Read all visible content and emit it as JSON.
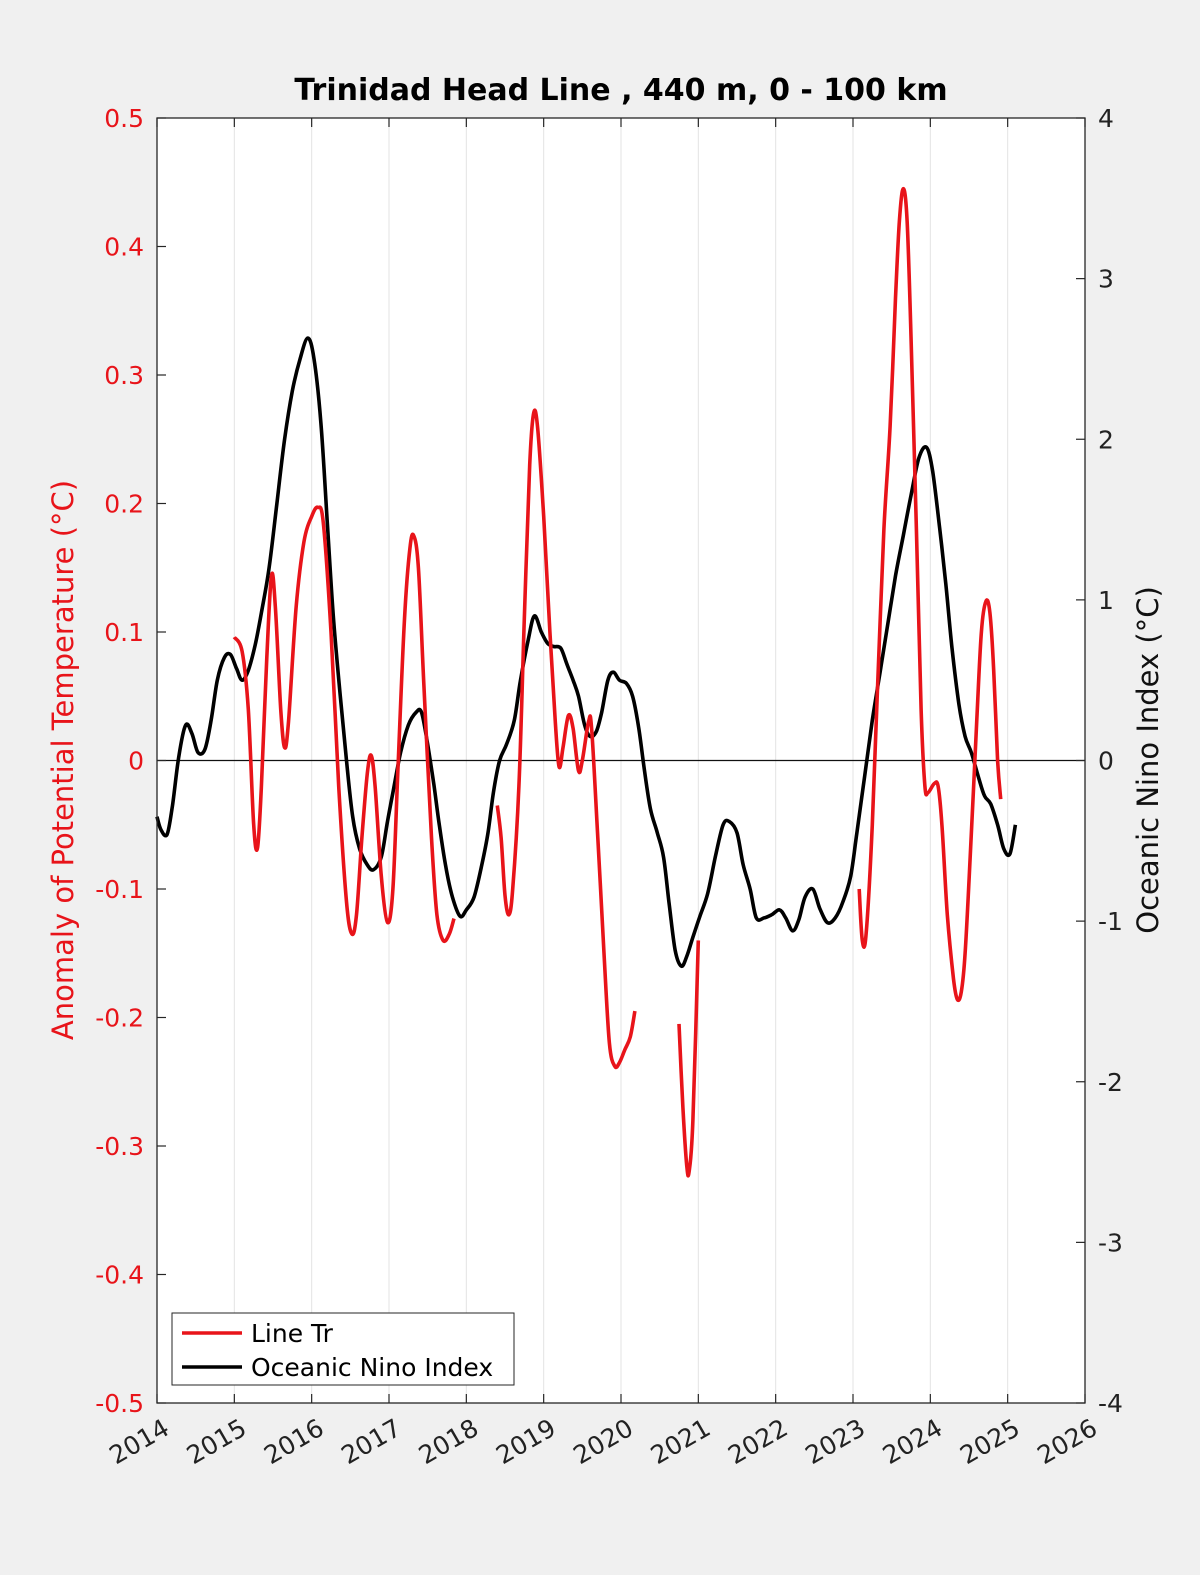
{
  "chart_data": {
    "type": "line",
    "title": "Trinidad Head Line , 440 m, 0 - 100 km",
    "xlabel": "",
    "ylabel_left": "Anomaly of Potential Temperature (°C)",
    "ylabel_right": "Oceanic Nino Index (°C)",
    "xlim": [
      2014,
      2026
    ],
    "ylim_left": [
      -0.5,
      0.5
    ],
    "ylim_right": [
      -4,
      4
    ],
    "x_ticks": [
      "2014",
      "2015",
      "2016",
      "2017",
      "2018",
      "2019",
      "2020",
      "2021",
      "2022",
      "2023",
      "2024",
      "2025",
      "2026"
    ],
    "y_ticks_left": [
      "0.5",
      "0.4",
      "0.3",
      "0.2",
      "0.1",
      "0",
      "-0.1",
      "-0.2",
      "-0.3",
      "-0.4",
      "-0.5"
    ],
    "y_ticks_right": [
      "4",
      "3",
      "2",
      "1",
      "0",
      "-1",
      "-2",
      "-3",
      "-4"
    ],
    "x_grid": true,
    "y_grid": false,
    "zero_line": true,
    "legend_position": "bottom-left",
    "colors": {
      "line_tr": "#e8141a",
      "oni": "#000000",
      "right_axis": "#222222"
    },
    "series": [
      {
        "name": "Line Tr",
        "axis": "left",
        "color": "#e8141a",
        "segments": [
          [
            [
              2015.0,
              0.096
            ],
            [
              2015.1,
              0.085
            ],
            [
              2015.18,
              0.04
            ],
            [
              2015.25,
              -0.05
            ],
            [
              2015.3,
              -0.068
            ],
            [
              2015.35,
              -0.02
            ],
            [
              2015.42,
              0.08
            ],
            [
              2015.48,
              0.144
            ],
            [
              2015.53,
              0.12
            ],
            [
              2015.6,
              0.04
            ],
            [
              2015.65,
              0.01
            ],
            [
              2015.7,
              0.03
            ],
            [
              2015.8,
              0.12
            ],
            [
              2015.9,
              0.17
            ],
            [
              2016.0,
              0.19
            ],
            [
              2016.08,
              0.197
            ],
            [
              2016.15,
              0.185
            ],
            [
              2016.25,
              0.1
            ],
            [
              2016.35,
              -0.02
            ],
            [
              2016.45,
              -0.11
            ],
            [
              2016.52,
              -0.135
            ],
            [
              2016.58,
              -0.12
            ],
            [
              2016.65,
              -0.06
            ],
            [
              2016.72,
              -0.01
            ],
            [
              2016.77,
              0.004
            ],
            [
              2016.82,
              -0.02
            ],
            [
              2016.9,
              -0.09
            ],
            [
              2016.98,
              -0.126
            ],
            [
              2017.05,
              -0.1
            ],
            [
              2017.12,
              0.0
            ],
            [
              2017.2,
              0.11
            ],
            [
              2017.27,
              0.165
            ],
            [
              2017.32,
              0.175
            ],
            [
              2017.38,
              0.15
            ],
            [
              2017.45,
              0.06
            ],
            [
              2017.55,
              -0.06
            ],
            [
              2017.62,
              -0.12
            ],
            [
              2017.7,
              -0.14
            ],
            [
              2017.78,
              -0.135
            ],
            [
              2017.84,
              -0.123
            ]
          ],
          [
            [
              2018.4,
              -0.035
            ],
            [
              2018.45,
              -0.06
            ],
            [
              2018.5,
              -0.105
            ],
            [
              2018.55,
              -0.12
            ],
            [
              2018.6,
              -0.1
            ],
            [
              2018.68,
              -0.02
            ],
            [
              2018.75,
              0.11
            ],
            [
              2018.82,
              0.23
            ],
            [
              2018.87,
              0.27
            ],
            [
              2018.92,
              0.26
            ],
            [
              2019.0,
              0.19
            ],
            [
              2019.08,
              0.1
            ],
            [
              2019.15,
              0.03
            ],
            [
              2019.2,
              -0.005
            ],
            [
              2019.25,
              0.01
            ],
            [
              2019.32,
              0.035
            ],
            [
              2019.38,
              0.025
            ],
            [
              2019.45,
              -0.008
            ],
            [
              2019.5,
              0.0
            ],
            [
              2019.58,
              0.03
            ],
            [
              2019.62,
              0.025
            ],
            [
              2019.7,
              -0.06
            ],
            [
              2019.78,
              -0.15
            ],
            [
              2019.85,
              -0.22
            ],
            [
              2019.92,
              -0.238
            ],
            [
              2019.98,
              -0.235
            ],
            [
              2020.05,
              -0.225
            ],
            [
              2020.12,
              -0.215
            ],
            [
              2020.18,
              -0.195
            ]
          ],
          [
            [
              2020.75,
              -0.205
            ],
            [
              2020.8,
              -0.27
            ],
            [
              2020.85,
              -0.315
            ],
            [
              2020.88,
              -0.32
            ],
            [
              2020.93,
              -0.28
            ],
            [
              2021.0,
              -0.14
            ]
          ],
          [
            [
              2023.08,
              -0.1
            ],
            [
              2023.12,
              -0.14
            ],
            [
              2023.17,
              -0.135
            ],
            [
              2023.25,
              -0.05
            ],
            [
              2023.32,
              0.06
            ],
            [
              2023.4,
              0.18
            ],
            [
              2023.48,
              0.26
            ],
            [
              2023.55,
              0.36
            ],
            [
              2023.6,
              0.42
            ],
            [
              2023.65,
              0.445
            ],
            [
              2023.7,
              0.42
            ],
            [
              2023.75,
              0.33
            ],
            [
              2023.82,
              0.18
            ],
            [
              2023.88,
              0.04
            ],
            [
              2023.93,
              -0.02
            ],
            [
              2023.97,
              -0.025
            ],
            [
              2024.05,
              -0.018
            ],
            [
              2024.1,
              -0.02
            ],
            [
              2024.15,
              -0.05
            ],
            [
              2024.22,
              -0.12
            ],
            [
              2024.3,
              -0.17
            ],
            [
              2024.35,
              -0.186
            ],
            [
              2024.4,
              -0.18
            ],
            [
              2024.45,
              -0.15
            ],
            [
              2024.52,
              -0.07
            ],
            [
              2024.6,
              0.03
            ],
            [
              2024.66,
              0.1
            ],
            [
              2024.72,
              0.124
            ],
            [
              2024.77,
              0.115
            ],
            [
              2024.82,
              0.07
            ],
            [
              2024.87,
              0.0
            ],
            [
              2024.91,
              -0.03
            ]
          ]
        ]
      },
      {
        "name": "Oceanic Nino Index",
        "axis": "right",
        "color": "#000000",
        "segments": [
          [
            [
              2014.0,
              -0.35
            ],
            [
              2014.05,
              -0.43
            ],
            [
              2014.13,
              -0.46
            ],
            [
              2014.2,
              -0.28
            ],
            [
              2014.28,
              0.02
            ],
            [
              2014.37,
              0.22
            ],
            [
              2014.45,
              0.17
            ],
            [
              2014.53,
              0.05
            ],
            [
              2014.62,
              0.07
            ],
            [
              2014.7,
              0.25
            ],
            [
              2014.78,
              0.5
            ],
            [
              2014.87,
              0.64
            ],
            [
              2014.95,
              0.66
            ],
            [
              2015.03,
              0.57
            ],
            [
              2015.1,
              0.5
            ],
            [
              2015.18,
              0.56
            ],
            [
              2015.27,
              0.72
            ],
            [
              2015.35,
              0.92
            ],
            [
              2015.45,
              1.2
            ],
            [
              2015.55,
              1.6
            ],
            [
              2015.65,
              2.0
            ],
            [
              2015.75,
              2.3
            ],
            [
              2015.85,
              2.5
            ],
            [
              2015.95,
              2.63
            ],
            [
              2016.03,
              2.5
            ],
            [
              2016.12,
              2.1
            ],
            [
              2016.2,
              1.5
            ],
            [
              2016.28,
              0.9
            ],
            [
              2016.37,
              0.4
            ],
            [
              2016.45,
              0.0
            ],
            [
              2016.53,
              -0.35
            ],
            [
              2016.62,
              -0.55
            ],
            [
              2016.72,
              -0.65
            ],
            [
              2016.8,
              -0.68
            ],
            [
              2016.9,
              -0.6
            ],
            [
              2016.98,
              -0.38
            ],
            [
              2017.05,
              -0.2
            ],
            [
              2017.15,
              0.05
            ],
            [
              2017.25,
              0.22
            ],
            [
              2017.35,
              0.3
            ],
            [
              2017.42,
              0.3
            ],
            [
              2017.5,
              0.1
            ],
            [
              2017.58,
              -0.15
            ],
            [
              2017.65,
              -0.4
            ],
            [
              2017.73,
              -0.65
            ],
            [
              2017.82,
              -0.85
            ],
            [
              2017.92,
              -0.97
            ],
            [
              2018.0,
              -0.93
            ],
            [
              2018.1,
              -0.85
            ],
            [
              2018.2,
              -0.65
            ],
            [
              2018.28,
              -0.45
            ],
            [
              2018.35,
              -0.2
            ],
            [
              2018.43,
              0.0
            ],
            [
              2018.52,
              0.1
            ],
            [
              2018.62,
              0.25
            ],
            [
              2018.7,
              0.5
            ],
            [
              2018.8,
              0.75
            ],
            [
              2018.88,
              0.9
            ],
            [
              2018.97,
              0.8
            ],
            [
              2019.05,
              0.73
            ],
            [
              2019.13,
              0.71
            ],
            [
              2019.22,
              0.7
            ],
            [
              2019.3,
              0.6
            ],
            [
              2019.38,
              0.5
            ],
            [
              2019.45,
              0.4
            ],
            [
              2019.53,
              0.22
            ],
            [
              2019.6,
              0.15
            ],
            [
              2019.68,
              0.18
            ],
            [
              2019.75,
              0.3
            ],
            [
              2019.83,
              0.5
            ],
            [
              2019.9,
              0.55
            ],
            [
              2019.98,
              0.5
            ],
            [
              2020.07,
              0.48
            ],
            [
              2020.15,
              0.4
            ],
            [
              2020.23,
              0.2
            ],
            [
              2020.3,
              -0.05
            ],
            [
              2020.38,
              -0.3
            ],
            [
              2020.47,
              -0.45
            ],
            [
              2020.55,
              -0.6
            ],
            [
              2020.62,
              -0.88
            ],
            [
              2020.7,
              -1.18
            ],
            [
              2020.78,
              -1.28
            ],
            [
              2020.85,
              -1.22
            ],
            [
              2020.93,
              -1.1
            ],
            [
              2021.02,
              -0.97
            ],
            [
              2021.12,
              -0.83
            ],
            [
              2021.22,
              -0.6
            ],
            [
              2021.32,
              -0.4
            ],
            [
              2021.4,
              -0.38
            ],
            [
              2021.5,
              -0.45
            ],
            [
              2021.58,
              -0.65
            ],
            [
              2021.67,
              -0.8
            ],
            [
              2021.75,
              -0.98
            ],
            [
              2021.85,
              -0.98
            ],
            [
              2021.95,
              -0.96
            ],
            [
              2022.05,
              -0.93
            ],
            [
              2022.13,
              -0.98
            ],
            [
              2022.22,
              -1.06
            ],
            [
              2022.3,
              -0.99
            ],
            [
              2022.38,
              -0.85
            ],
            [
              2022.48,
              -0.8
            ],
            [
              2022.57,
              -0.92
            ],
            [
              2022.67,
              -1.01
            ],
            [
              2022.77,
              -0.98
            ],
            [
              2022.87,
              -0.88
            ],
            [
              2022.97,
              -0.72
            ],
            [
              2023.05,
              -0.45
            ],
            [
              2023.15,
              -0.1
            ],
            [
              2023.25,
              0.25
            ],
            [
              2023.35,
              0.55
            ],
            [
              2023.45,
              0.85
            ],
            [
              2023.55,
              1.15
            ],
            [
              2023.65,
              1.4
            ],
            [
              2023.75,
              1.65
            ],
            [
              2023.85,
              1.88
            ],
            [
              2023.95,
              1.95
            ],
            [
              2024.03,
              1.8
            ],
            [
              2024.12,
              1.45
            ],
            [
              2024.2,
              1.1
            ],
            [
              2024.28,
              0.7
            ],
            [
              2024.37,
              0.35
            ],
            [
              2024.45,
              0.15
            ],
            [
              2024.53,
              0.05
            ],
            [
              2024.62,
              -0.1
            ],
            [
              2024.7,
              -0.22
            ],
            [
              2024.78,
              -0.27
            ],
            [
              2024.87,
              -0.4
            ],
            [
              2024.95,
              -0.55
            ],
            [
              2025.03,
              -0.58
            ],
            [
              2025.1,
              -0.4
            ]
          ]
        ]
      }
    ]
  }
}
